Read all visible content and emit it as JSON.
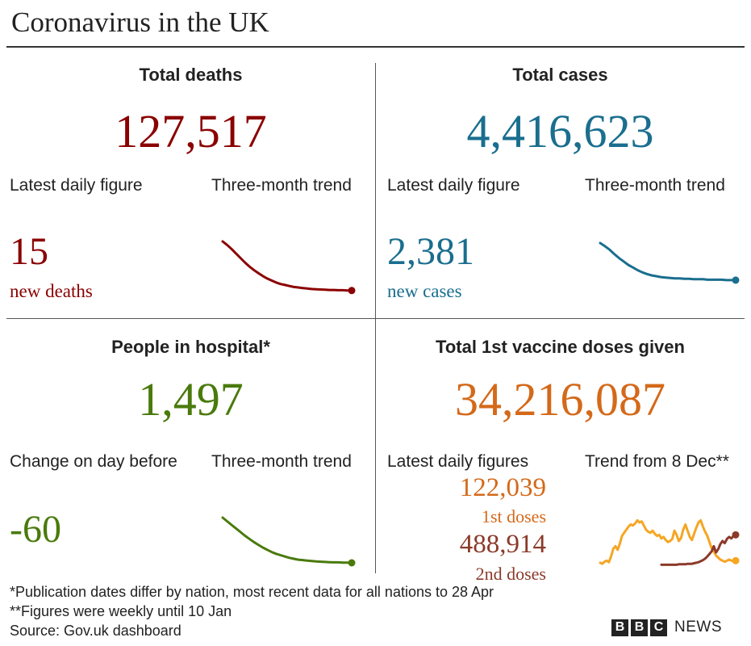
{
  "title": "Coronavirus in the UK",
  "colors": {
    "deaths": "#8b0000",
    "cases": "#1a6e8e",
    "hospital": "#4a7a0c",
    "vaccine": "#d4691a",
    "first_dose_line": "#f5a623",
    "second_dose_line": "#8b3a2a"
  },
  "deaths": {
    "heading": "Total deaths",
    "total": "127,517",
    "daily_label": "Latest daily figure",
    "trend_label": "Three-month trend",
    "daily_value": "15",
    "daily_unit": "new deaths"
  },
  "cases": {
    "heading": "Total cases",
    "total": "4,416,623",
    "daily_label": "Latest daily figure",
    "trend_label": "Three-month trend",
    "daily_value": "2,381",
    "daily_unit": "new cases"
  },
  "hospital": {
    "heading": "People in hospital*",
    "total": "1,497",
    "daily_label": "Change on day before",
    "trend_label": "Three-month trend",
    "daily_value": "-60"
  },
  "vaccine": {
    "heading": "Total 1st vaccine doses given",
    "total": "34,216,087",
    "daily_label": "Latest daily figures",
    "trend_label": "Trend from 8 Dec**",
    "first_value": "122,039",
    "first_label": "1st doses",
    "second_value": "488,914",
    "second_label": "2nd doses"
  },
  "footnotes": {
    "note1": "*Publication dates differ by nation, most recent data for all nations to 28 Apr",
    "note2": "**Figures were weekly until 10 Jan",
    "source": "Source: Gov.uk dashboard"
  },
  "branding": {
    "b1": "B",
    "b2": "B",
    "b3": "C",
    "news": "NEWS"
  },
  "chart_data": [
    {
      "type": "line",
      "series": [
        {
          "values": [
            100,
            93,
            85,
            76,
            67,
            58,
            50,
            43,
            37,
            31,
            26,
            22,
            18,
            15,
            13,
            11,
            9,
            8,
            7,
            6,
            5,
            4.5,
            4,
            3.5,
            3,
            3,
            2.5,
            2.5,
            2,
            2
          ]
        }
      ]
    },
    {
      "type": "line",
      "series": [
        {
          "values": [
            100,
            93,
            85,
            75,
            66,
            58,
            50,
            44,
            38,
            33,
            29,
            26,
            24,
            22,
            21,
            20,
            19,
            19,
            18,
            18,
            17,
            17,
            17,
            16,
            16,
            16,
            16,
            15,
            15,
            15
          ]
        }
      ]
    },
    {
      "type": "line",
      "series": [
        {
          "values": [
            100,
            92,
            84,
            76,
            68,
            60,
            53,
            46,
            40,
            34,
            29,
            24,
            20,
            17,
            14,
            11,
            9,
            7,
            6,
            5,
            4,
            3,
            2.5,
            2,
            1.5,
            1,
            1,
            0.5,
            0.5,
            0
          ]
        }
      ]
    },
    {
      "type": "line",
      "series": [
        {
          "values": [
            8,
            6,
            10,
            12,
            9,
            20,
            35,
            40,
            33,
            45,
            60,
            66,
            72,
            78,
            82,
            80,
            84,
            90,
            86,
            88,
            80,
            72,
            68,
            66,
            70,
            64,
            60,
            62,
            55,
            58,
            52,
            48,
            50,
            54,
            70,
            62,
            50,
            56,
            72,
            82,
            70,
            58,
            52,
            64,
            76,
            86,
            90,
            78,
            68,
            60,
            48,
            36,
            30,
            22,
            18,
            14,
            12,
            10,
            12,
            14,
            12,
            11,
            12
          ]
        },
        {
          "values": [
            4,
            4,
            4,
            4,
            4,
            4,
            4,
            4,
            5,
            5,
            5,
            5,
            6,
            6,
            6,
            7,
            8,
            9,
            11,
            13,
            16,
            20,
            25,
            30,
            40,
            28,
            34,
            44,
            50,
            46,
            54,
            58,
            55,
            60,
            62
          ]
        }
      ]
    }
  ]
}
